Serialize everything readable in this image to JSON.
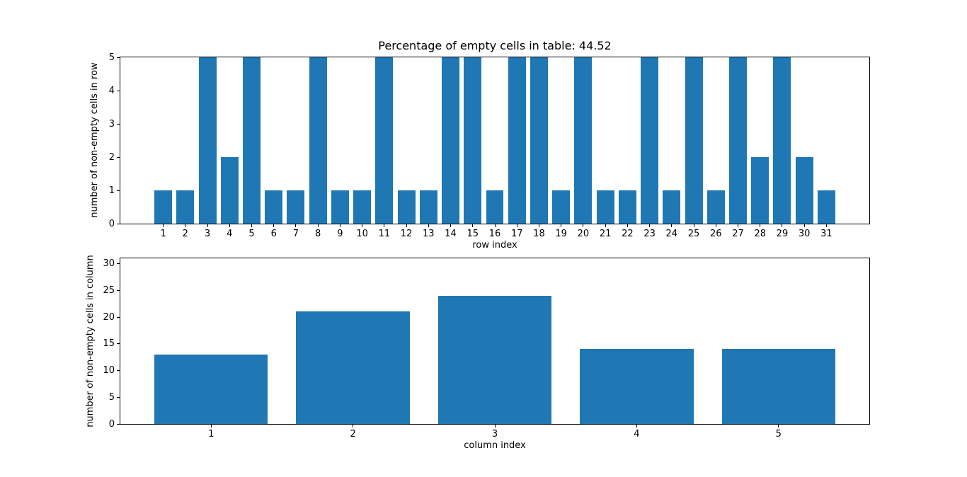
{
  "figure": {
    "background": "#ffffff",
    "spine_color": "#000000"
  },
  "chart_data": [
    {
      "type": "bar",
      "title": "Percentage of empty cells in table: 44.52",
      "xlabel": "row index",
      "ylabel": "number of non-empty cells in row",
      "categories": [
        1,
        2,
        3,
        4,
        5,
        6,
        7,
        8,
        9,
        10,
        11,
        12,
        13,
        14,
        15,
        16,
        17,
        18,
        19,
        20,
        21,
        22,
        23,
        24,
        25,
        26,
        27,
        28,
        29,
        30,
        31
      ],
      "values": [
        1,
        1,
        5,
        2,
        5,
        1,
        1,
        5,
        1,
        1,
        5,
        1,
        1,
        5,
        5,
        1,
        5,
        5,
        1,
        5,
        1,
        1,
        5,
        1,
        5,
        1,
        5,
        2,
        5,
        2,
        1
      ],
      "yticks": [
        0,
        1,
        2,
        3,
        4,
        5
      ],
      "ylim": [
        0,
        5
      ],
      "xlim": [
        -0.94,
        32.94
      ],
      "bar_width": 0.8,
      "bar_color": "#1f77b4",
      "grid": false,
      "legend": null
    },
    {
      "type": "bar",
      "title": "",
      "xlabel": "column index",
      "ylabel": "number of non-empty cells in column",
      "categories": [
        1,
        2,
        3,
        4,
        5
      ],
      "values": [
        13,
        21,
        24,
        14,
        14
      ],
      "yticks": [
        0,
        5,
        10,
        15,
        20,
        25,
        30
      ],
      "ylim": [
        0,
        31
      ],
      "xlim": [
        0.36,
        5.64
      ],
      "bar_width": 0.8,
      "bar_color": "#1f77b4",
      "grid": false,
      "legend": null
    }
  ]
}
